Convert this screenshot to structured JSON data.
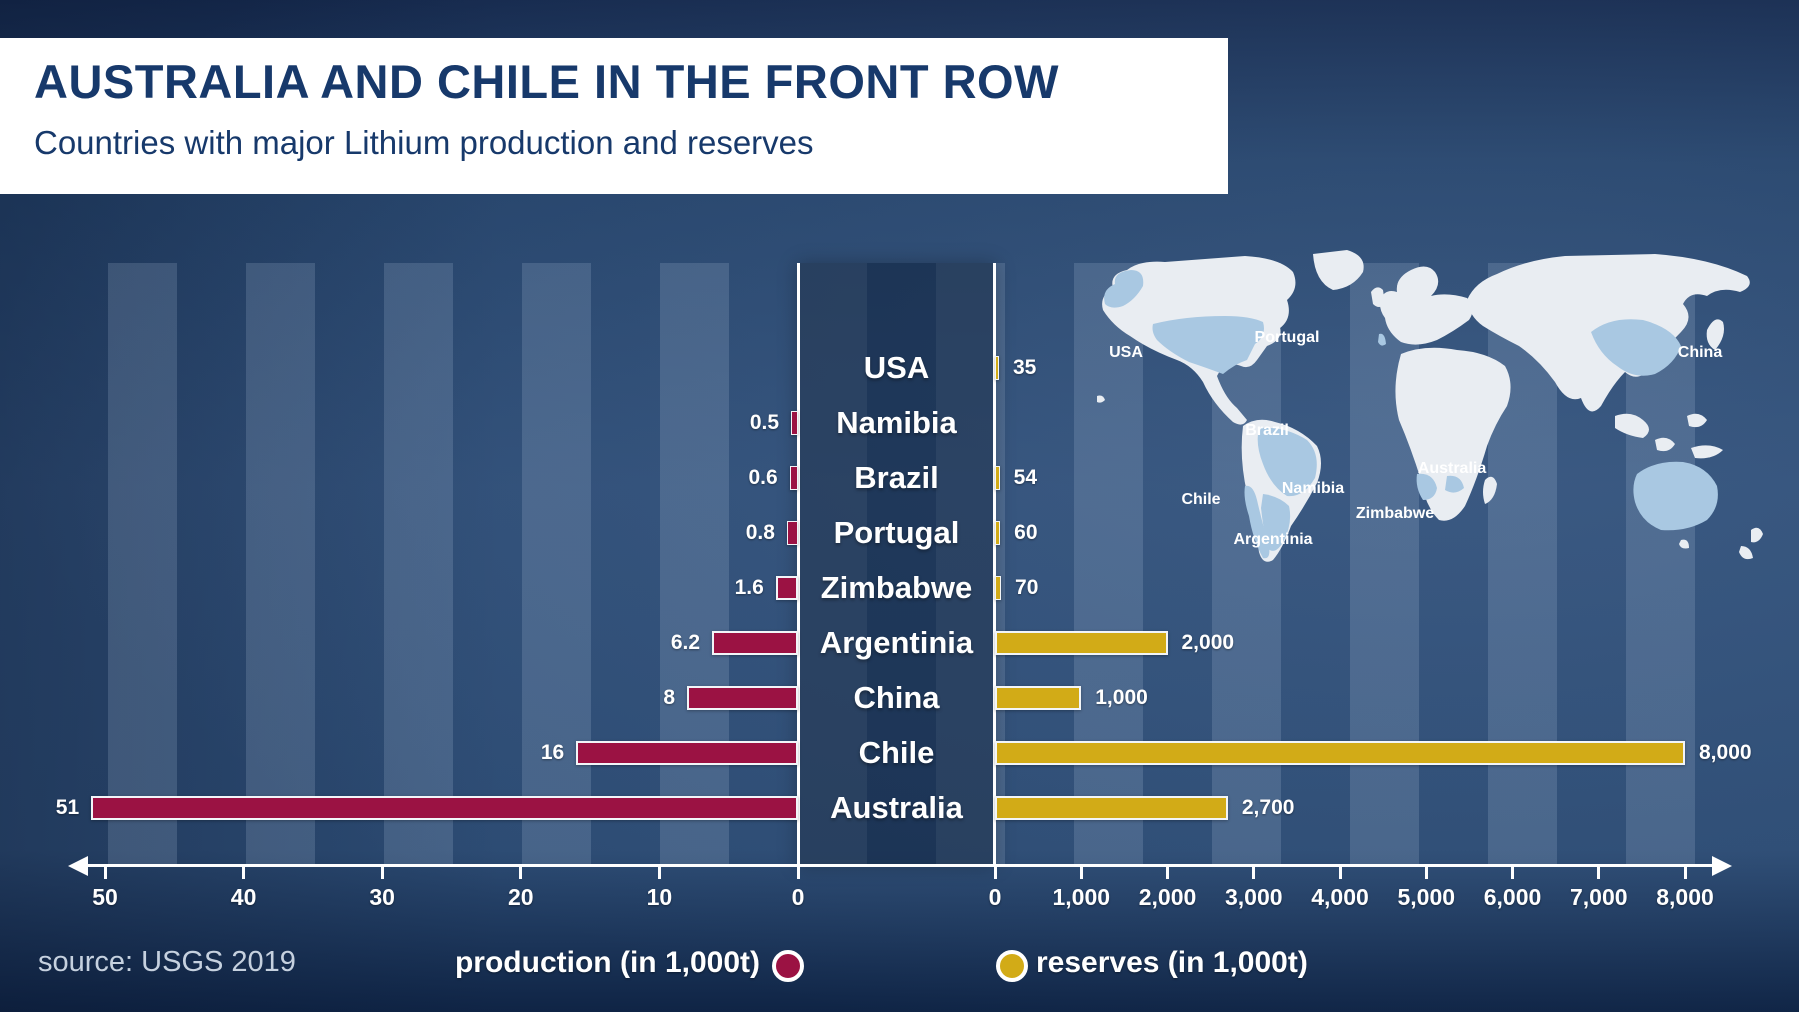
{
  "title": "AUSTRALIA AND CHILE IN THE FRONT ROW",
  "subtitle": "Countries with major Lithium production and reserves",
  "source": "source: USGS 2019",
  "legend": {
    "production": "production (in 1,000t)",
    "reserves": "reserves (in 1,000t)"
  },
  "colors": {
    "production": "#9b1243",
    "reserves": "#d2ab17",
    "title_text": "#17396b",
    "background": "#2e4d76",
    "map_land": "#e9edf2",
    "map_highlight": "#a9c8e2",
    "axis": "#ffffff"
  },
  "chart_data": {
    "type": "bar",
    "orientation": "diverging-horizontal",
    "title": "Countries with major Lithium production and reserves",
    "categories": [
      "USA",
      "Namibia",
      "Brazil",
      "Portugal",
      "Zimbabwe",
      "Argentinia",
      "China",
      "Chile",
      "Australia"
    ],
    "series": [
      {
        "name": "production (in 1,000t)",
        "side": "left",
        "values": [
          null,
          0.5,
          0.6,
          0.8,
          1.6,
          6.2,
          8,
          16,
          51
        ],
        "value_labels": [
          "",
          "0.5",
          "0.6",
          "0.8",
          "1.6",
          "6.2",
          "8",
          "16",
          "51"
        ],
        "axis_ticks": [
          "50",
          "40",
          "30",
          "20",
          "10",
          "0"
        ],
        "axis_tick_values": [
          50,
          40,
          30,
          20,
          10,
          0
        ],
        "axis_max": 50
      },
      {
        "name": "reserves (in 1,000t)",
        "side": "right",
        "values": [
          35,
          null,
          54,
          60,
          70,
          2000,
          1000,
          8000,
          2700
        ],
        "value_labels": [
          "35",
          "",
          "54",
          "60",
          "70",
          "2,000",
          "1,000",
          "8,000",
          "2,700"
        ],
        "axis_ticks": [
          "0",
          "1,000",
          "2,000",
          "3,000",
          "4,000",
          "5,000",
          "6,000",
          "7,000",
          "8,000"
        ],
        "axis_tick_values": [
          0,
          1000,
          2000,
          3000,
          4000,
          5000,
          6000,
          7000,
          8000
        ],
        "axis_max": 8000
      }
    ],
    "grid": "vertical stripes",
    "legend_position": "bottom"
  },
  "map": {
    "labels": {
      "usa": "USA",
      "portugal": "Portugal",
      "china": "China",
      "brazil": "Brazil",
      "namibia": "Namibia",
      "chile": "Chile",
      "zimbabwe": "Zimbabwe",
      "australia": "Australia",
      "argentinia": "Argentinia"
    }
  }
}
